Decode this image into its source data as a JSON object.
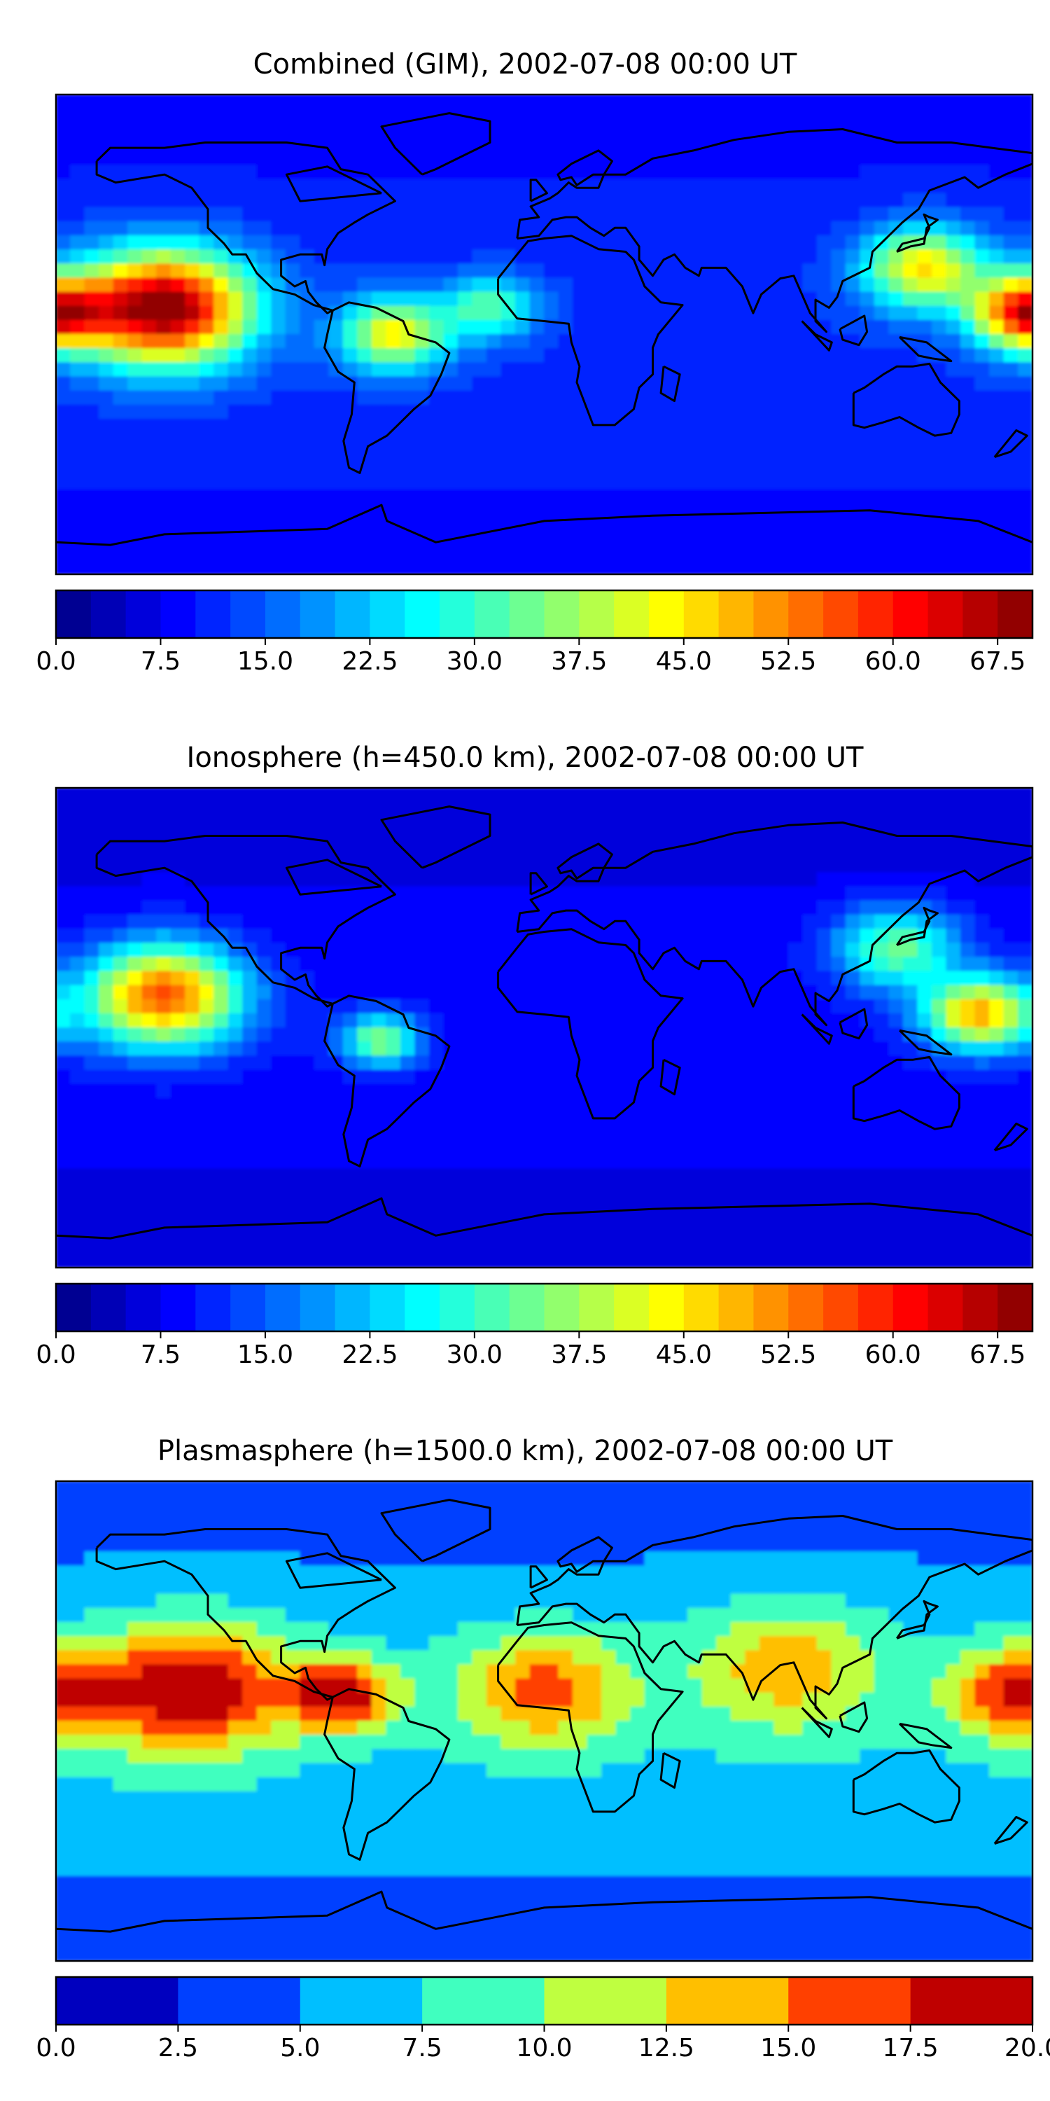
{
  "chart_data": [
    {
      "type": "heatmap",
      "title": "Combined (GIM), 2002-07-08 00:00 UT",
      "levels_min": 0.0,
      "levels_max": 70.0,
      "levels_step": 2.5,
      "colorbar_ticks": [
        "0.0",
        "7.5",
        "15.0",
        "22.5",
        "30.0",
        "37.5",
        "45.0",
        "52.5",
        "60.0",
        "67.5"
      ],
      "hotspots": [
        {
          "lon": -140,
          "lat": 10,
          "value": 68,
          "spread": 22
        },
        {
          "lon": 178,
          "lat": 8,
          "value": 55,
          "spread": 14
        },
        {
          "lon": -55,
          "lat": 0,
          "value": 40,
          "spread": 14
        },
        {
          "lon": 140,
          "lat": 25,
          "value": 42,
          "spread": 16
        },
        {
          "lon": -20,
          "lat": 10,
          "value": 28,
          "spread": 12
        }
      ],
      "background": 8
    },
    {
      "type": "heatmap",
      "title": "Ionosphere  (h=450.0 km), 2002-07-08 00:00 UT",
      "levels_min": 0.0,
      "levels_max": 70.0,
      "levels_step": 2.5,
      "colorbar_ticks": [
        "0.0",
        "7.5",
        "15.0",
        "22.5",
        "30.0",
        "37.5",
        "45.0",
        "52.5",
        "60.0",
        "67.5"
      ],
      "hotspots": [
        {
          "lon": -140,
          "lat": 12,
          "value": 52,
          "spread": 20
        },
        {
          "lon": 160,
          "lat": 5,
          "value": 45,
          "spread": 14
        },
        {
          "lon": -60,
          "lat": -5,
          "value": 32,
          "spread": 10
        },
        {
          "lon": 130,
          "lat": 30,
          "value": 30,
          "spread": 16
        }
      ],
      "background": 5
    },
    {
      "type": "heatmap",
      "title": "Plasmasphere (h=1500.0 km), 2002-07-08 00:00 UT",
      "levels_min": 0.0,
      "levels_max": 20.0,
      "levels_step": 2.5,
      "colorbar_ticks": [
        "0.0",
        "2.5",
        "5.0",
        "7.5",
        "10.0",
        "12.5",
        "15.0",
        "17.5",
        "20.0"
      ],
      "hotspots": [
        {
          "lon": -130,
          "lat": 12,
          "value": 16.5,
          "spread": 25
        },
        {
          "lon": -75,
          "lat": 10,
          "value": 15.5,
          "spread": 14
        },
        {
          "lon": 0,
          "lat": 12,
          "value": 12.5,
          "spread": 22
        },
        {
          "lon": 175,
          "lat": 10,
          "value": 14,
          "spread": 18
        },
        {
          "lon": 90,
          "lat": 20,
          "value": 10.5,
          "spread": 25
        }
      ],
      "background": 3
    }
  ]
}
